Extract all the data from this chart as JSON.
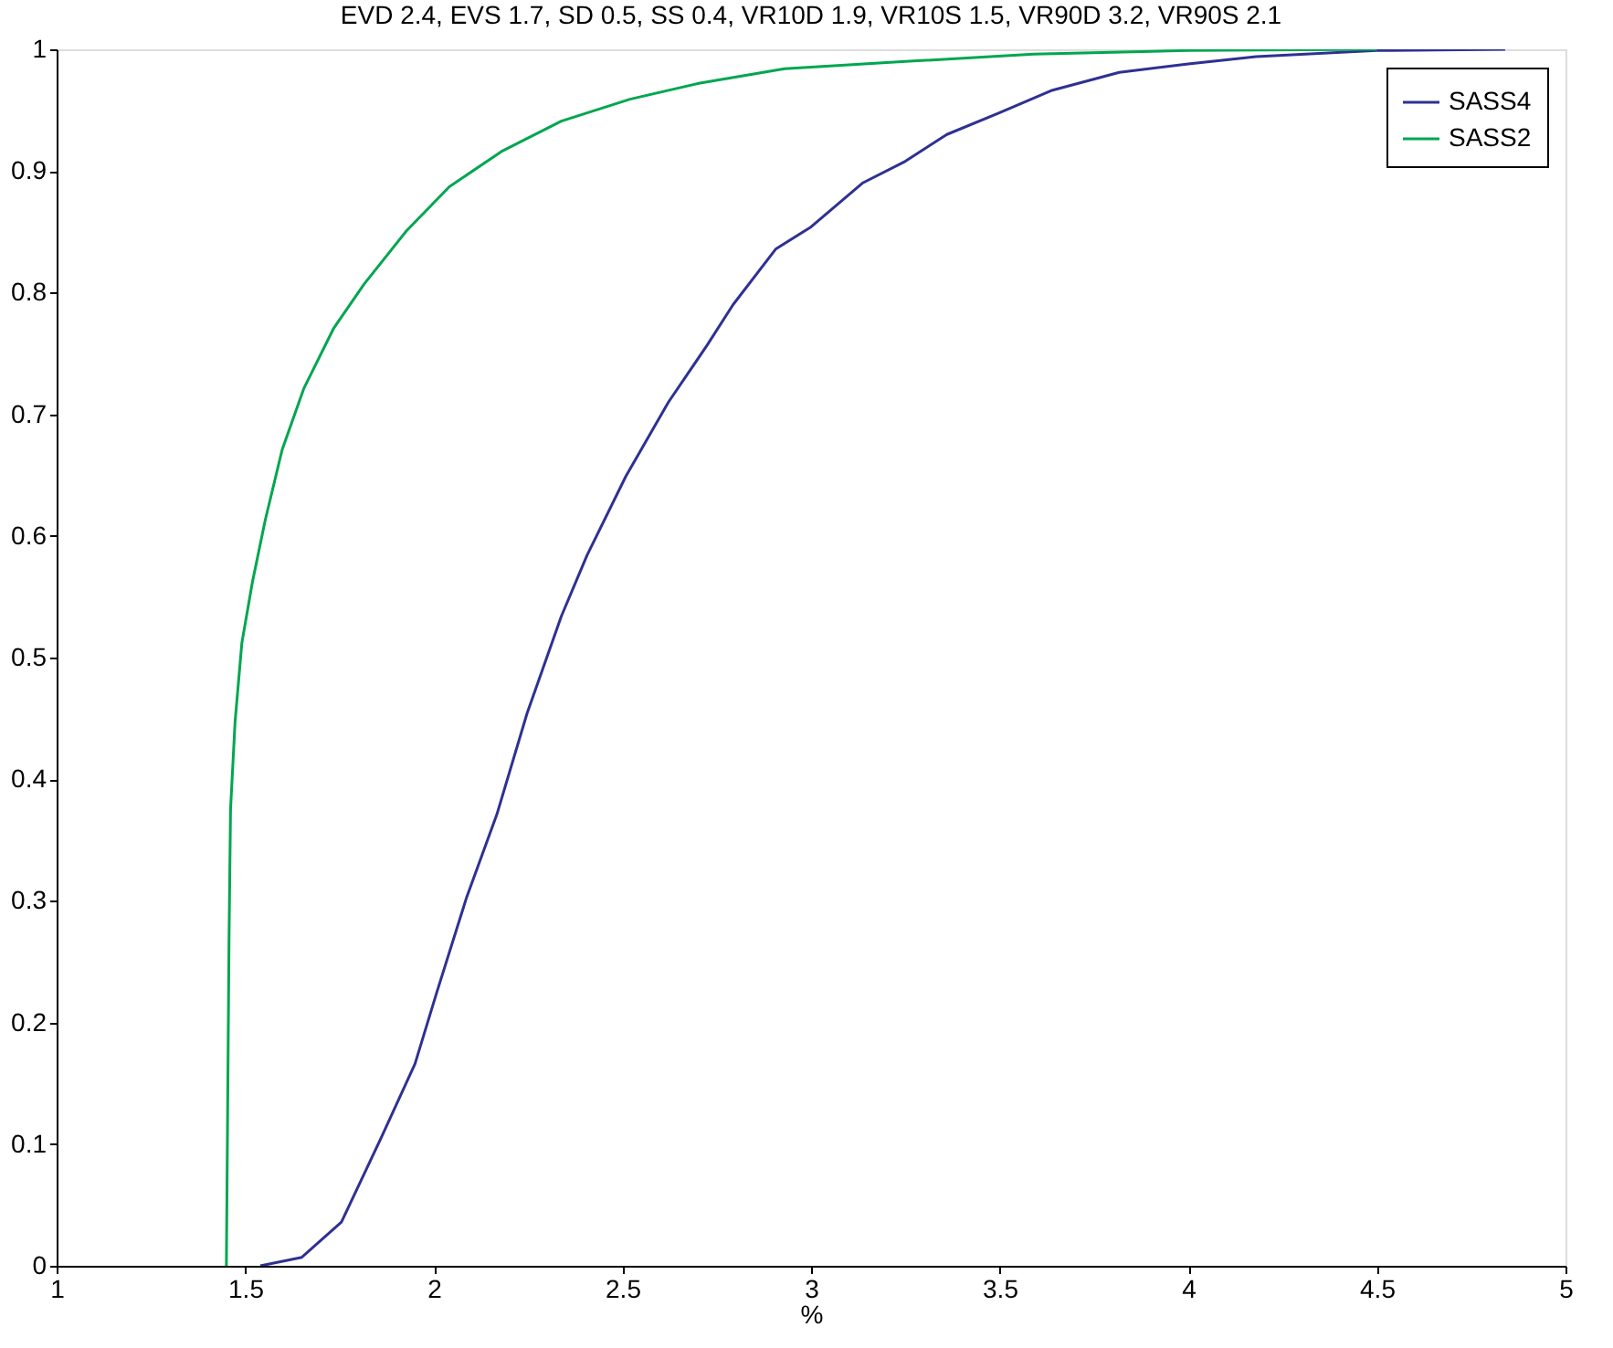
{
  "chart_data": {
    "type": "line",
    "title": "EVD 2.4, EVS 1.7, SD 0.5, SS 0.4, VR10D 1.9, VR10S 1.5, VR90D 3.2, VR90S 2.1",
    "xlabel": "%",
    "xlim": [
      1,
      5
    ],
    "xticks": [
      1,
      1.5,
      2,
      2.5,
      3,
      3.5,
      4,
      4.5,
      5
    ],
    "ylim": [
      0,
      1
    ],
    "yticks": [
      0,
      0.1,
      0.2,
      0.3,
      0.4,
      0.5,
      0.6,
      0.7,
      0.8,
      0.9,
      1
    ],
    "grid": false,
    "legend": "top right",
    "marker": "none",
    "line_style": "solid",
    "series": [
      {
        "name": "SASS4",
        "color": "#2e3192",
        "x": [
          1.54,
          1.65,
          1.755,
          1.86,
          1.95,
          2.007,
          2.087,
          2.167,
          2.247,
          2.338,
          2.406,
          2.509,
          2.622,
          2.725,
          2.793,
          2.907,
          3.0,
          3.136,
          3.25,
          3.36,
          3.5,
          3.636,
          3.817,
          4.0,
          4.18,
          4.5,
          4.84
        ],
        "values": [
          0,
          0.007,
          0.036,
          0.105,
          0.166,
          0.224,
          0.303,
          0.371,
          0.454,
          0.534,
          0.584,
          0.649,
          0.71,
          0.757,
          0.79,
          0.836,
          0.854,
          0.89,
          0.908,
          0.93,
          0.948,
          0.966,
          0.981,
          0.988,
          0.994,
          0.999,
          1
        ]
      },
      {
        "name": "SASS2",
        "color": "#00a650",
        "x": [
          1.45,
          1.457,
          1.461,
          1.473,
          1.491,
          1.519,
          1.553,
          1.598,
          1.655,
          1.735,
          1.815,
          1.928,
          2.041,
          2.179,
          2.338,
          2.52,
          2.702,
          2.93,
          3.25,
          3.59,
          4.0,
          4.5
        ],
        "values": [
          0,
          0.267,
          0.375,
          0.447,
          0.512,
          0.562,
          0.613,
          0.671,
          0.721,
          0.771,
          0.807,
          0.851,
          0.887,
          0.916,
          0.941,
          0.959,
          0.972,
          0.984,
          0.99,
          0.996,
          0.999,
          1
        ]
      }
    ]
  }
}
